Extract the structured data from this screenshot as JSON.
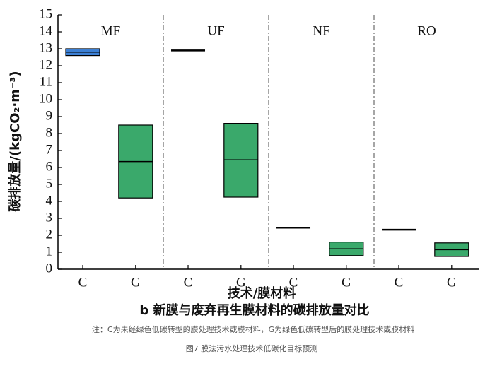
{
  "chart_data": {
    "type": "box",
    "y_label": "碳排放量/(kgCO₂·m⁻³)",
    "x_label": "技术/膜材料",
    "caption": "b 新膜与废弃再生膜材料的碳排放量对比",
    "note": "注：C为未经绿色低碳转型的膜处理技术或膜材料，G为绿色低碳转型后的膜处理技术或膜材料",
    "figure_caption": "图7 膜法污水处理技术低碳化目标预测",
    "groups": [
      "MF",
      "UF",
      "NF",
      "RO"
    ],
    "categories": [
      "C",
      "G",
      "C",
      "G",
      "C",
      "G",
      "C",
      "G"
    ],
    "low": [
      12.6,
      4.2,
      12.9,
      4.25,
      2.45,
      0.8,
      2.33,
      0.75
    ],
    "median": [
      12.8,
      6.35,
      12.9,
      6.45,
      2.45,
      1.2,
      2.33,
      1.15
    ],
    "high": [
      13.0,
      8.5,
      12.9,
      8.6,
      2.45,
      1.6,
      2.33,
      1.55
    ],
    "colors": [
      "#3b7fd4",
      "#3aa96b",
      "#000000",
      "#3aa96b",
      "#000000",
      "#3aa96b",
      "#000000",
      "#3aa96b"
    ],
    "ylim": [
      0,
      15
    ],
    "yticks": [
      0,
      1,
      2,
      3,
      4,
      5,
      6,
      7,
      8,
      9,
      10,
      11,
      12,
      13,
      14,
      15
    ]
  }
}
